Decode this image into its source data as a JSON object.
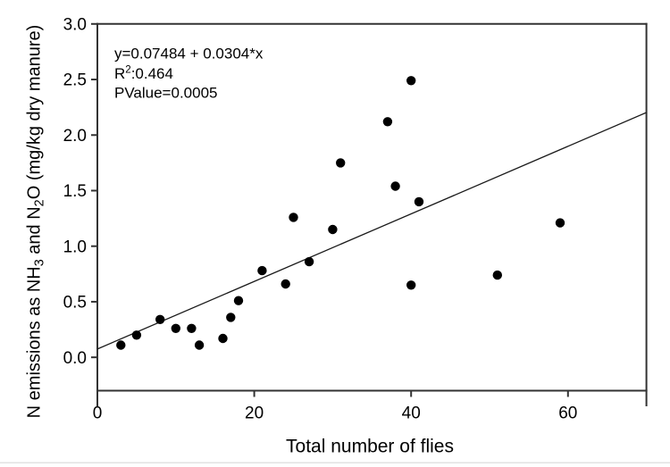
{
  "chart_data": {
    "type": "scatter",
    "title": "",
    "xlabel": "Total number of flies",
    "ylabel_plain": "N emissions as NH3 and N2O (mg/kg dry manure)",
    "ylabel_segments": [
      {
        "text": "N emissions as NH",
        "style": "normal"
      },
      {
        "text": "3",
        "style": "sub"
      },
      {
        "text": " and N",
        "style": "normal"
      },
      {
        "text": "2",
        "style": "sub"
      },
      {
        "text": "O (mg/kg dry manure)",
        "style": "normal"
      }
    ],
    "xlim": [
      0,
      70
    ],
    "ylim": [
      -0.3,
      3.0
    ],
    "x_ticks": [
      {
        "value": 0,
        "label": "0"
      },
      {
        "value": 20,
        "label": "20"
      },
      {
        "value": 40,
        "label": "40"
      },
      {
        "value": 60,
        "label": "60"
      }
    ],
    "y_ticks": [
      {
        "value": 0.0,
        "label": "0.0"
      },
      {
        "value": 0.5,
        "label": "0.5"
      },
      {
        "value": 1.0,
        "label": "1.0"
      },
      {
        "value": 1.5,
        "label": "1.5"
      },
      {
        "value": 2.0,
        "label": "2.0"
      },
      {
        "value": 2.5,
        "label": "2.5"
      },
      {
        "value": 3.0,
        "label": "3.0"
      }
    ],
    "points": [
      [
        3,
        0.11
      ],
      [
        5,
        0.2
      ],
      [
        8,
        0.34
      ],
      [
        10,
        0.26
      ],
      [
        12,
        0.26
      ],
      [
        13,
        0.11
      ],
      [
        16,
        0.17
      ],
      [
        17,
        0.36
      ],
      [
        18,
        0.51
      ],
      [
        21,
        0.78
      ],
      [
        24,
        0.66
      ],
      [
        25,
        1.26
      ],
      [
        27,
        0.86
      ],
      [
        30,
        1.15
      ],
      [
        31,
        1.75
      ],
      [
        37,
        2.12
      ],
      [
        38,
        1.54
      ],
      [
        40,
        2.49
      ],
      [
        40,
        0.65
      ],
      [
        41,
        1.4
      ],
      [
        51,
        0.74
      ],
      [
        59,
        1.21
      ]
    ],
    "regression_line": {
      "intercept": 0.07484,
      "slope": 0.0304,
      "x_start": 0,
      "x_end": 70
    },
    "annotation_lines": [
      [
        {
          "text": "y=0.07484 + 0.0304*x",
          "style": "normal"
        }
      ],
      [
        {
          "text": "R",
          "style": "normal"
        },
        {
          "text": "2",
          "style": "sup"
        },
        {
          "text": ":0.464",
          "style": "normal"
        }
      ],
      [
        {
          "text": "PValue=0.0005",
          "style": "normal"
        }
      ]
    ],
    "legend_position": "none",
    "grid": false,
    "marker_color": "#000000",
    "line_color": "#1a1a1a",
    "axis_color": "#333333",
    "text_color": "#000000",
    "bottom_edge_color": "#e2e2e2"
  }
}
